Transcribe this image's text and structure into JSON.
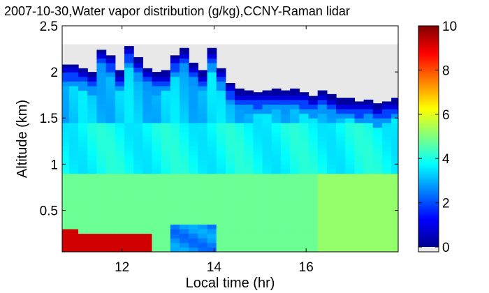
{
  "chart_data": {
    "type": "heatmap",
    "title": "2007-10-30,Water vapor distribution (g/kg),CCNY-Raman lidar",
    "xlabel": "Local time (hr)",
    "ylabel": "Altitude (km)",
    "xlim": [
      10.7,
      18.0
    ],
    "ylim": [
      0.05,
      2.5
    ],
    "x_ticks": [
      12,
      14,
      16
    ],
    "x_tick_labels": [
      "12",
      "14",
      "16"
    ],
    "y_ticks": [
      0.5,
      1,
      1.5,
      2,
      2.5
    ],
    "y_tick_labels": [
      "0.5",
      "1",
      "1.5",
      "2",
      "2.5"
    ],
    "colorbar": {
      "min": 0,
      "max": 10,
      "ticks": [
        0,
        2,
        4,
        6,
        8,
        10
      ],
      "tick_labels": [
        "0",
        "2",
        "4",
        "6",
        "8",
        "10"
      ],
      "colormap": "jet"
    },
    "no_data_color": "#e8e8e8",
    "grid": false,
    "x_time_hr": [
      10.75,
      10.95,
      11.15,
      11.35,
      11.55,
      11.75,
      11.95,
      12.15,
      12.35,
      12.55,
      12.75,
      12.95,
      13.15,
      13.35,
      13.55,
      13.75,
      13.95,
      14.15,
      14.35,
      14.55,
      14.75,
      14.95,
      15.15,
      15.35,
      15.55,
      15.75,
      15.95,
      16.15,
      16.35,
      16.55,
      16.75,
      16.95,
      17.15,
      17.35,
      17.55,
      17.75,
      17.95
    ],
    "profile_top_km": [
      2.08,
      2.08,
      2.04,
      2.0,
      2.24,
      2.18,
      2.02,
      2.28,
      2.16,
      2.04,
      2.0,
      2.02,
      2.18,
      2.26,
      2.1,
      2.02,
      2.26,
      2.04,
      1.88,
      1.82,
      1.8,
      1.78,
      1.8,
      1.82,
      1.8,
      1.82,
      1.78,
      1.74,
      1.8,
      1.76,
      1.72,
      1.72,
      1.68,
      1.7,
      1.66,
      1.68,
      1.72
    ],
    "moist_layer_top_km": [
      0.28,
      0.28,
      0.27,
      0.27,
      0.27,
      0.27,
      0.27,
      0.27,
      0.27,
      0.27,
      0,
      0,
      0,
      0,
      0,
      0,
      0,
      0,
      0,
      0,
      0,
      0,
      0,
      0,
      0,
      0,
      0,
      0,
      0,
      0,
      0,
      0,
      0,
      0,
      0,
      0,
      0
    ],
    "water_vapor_g_per_kg": {
      "near_surface_moist_layer": 9.2,
      "boundary_layer": 4.8,
      "mid_levels": 3.8,
      "upper_levels": 3.2,
      "profile_top_edge": 0.3
    }
  }
}
